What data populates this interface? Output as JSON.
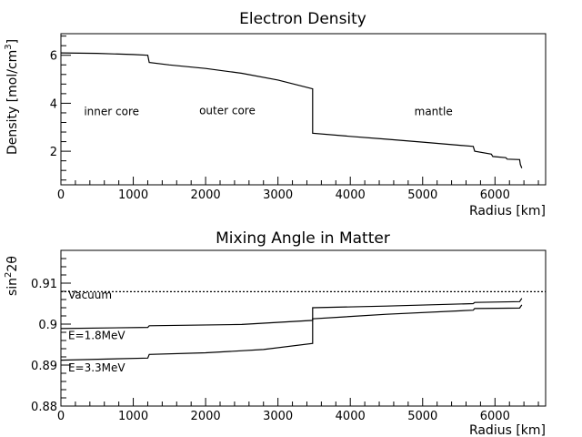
{
  "chart_data": [
    {
      "type": "line",
      "title": "Electron Density",
      "xlabel": "Radius [km]",
      "ylabel_main": "Density [mol/cm",
      "ylabel_sup": "3",
      "ylabel_close": "]",
      "xlim": [
        0,
        6700
      ],
      "ylim": [
        0.6,
        6.9
      ],
      "xticks": [
        0,
        1000,
        2000,
        3000,
        4000,
        5000,
        6000
      ],
      "yticks": [
        2,
        4,
        6
      ],
      "series": [
        {
          "x": [
            0,
            500,
            1000,
            1200,
            1220,
            1500,
            2000,
            2500,
            3000,
            3480,
            3480,
            4000,
            4500,
            5000,
            5500,
            5700,
            5720,
            5950,
            5970,
            6150,
            6170,
            6340,
            6350,
            6371
          ],
          "y": [
            6.1,
            6.08,
            6.03,
            6.0,
            5.7,
            5.6,
            5.45,
            5.25,
            4.97,
            4.6,
            2.75,
            2.62,
            2.5,
            2.38,
            2.25,
            2.2,
            2.0,
            1.88,
            1.78,
            1.73,
            1.67,
            1.65,
            1.45,
            1.3
          ]
        }
      ],
      "annotations": [
        {
          "text": "inner core",
          "x": 700,
          "y": 3.5
        },
        {
          "text": "outer core",
          "x": 2300,
          "y": 3.55
        },
        {
          "text": "mantle",
          "x": 5150,
          "y": 3.5
        }
      ]
    },
    {
      "type": "line",
      "title": "Mixing Angle in Matter",
      "xlabel": "Radius [km]",
      "ylabel_main": "sin",
      "ylabel_sup": "2",
      "ylabel_close": "2θ",
      "xlim": [
        0,
        6700
      ],
      "ylim": [
        0.88,
        0.918
      ],
      "xticks": [
        0,
        1000,
        2000,
        3000,
        4000,
        5000,
        6000
      ],
      "yticks": [
        0.88,
        0.89,
        0.9,
        0.91
      ],
      "ytick_labels": [
        "0.88",
        "0.89",
        "0.9",
        "0.91"
      ],
      "series": [
        {
          "name": "Vacuum",
          "style": "dotted",
          "x": [
            0,
            6700
          ],
          "y": [
            0.9079,
            0.9079
          ]
        },
        {
          "name": "E=1.8MeV",
          "x": [
            0,
            1200,
            1220,
            2500,
            3480,
            3480,
            4500,
            5700,
            5720,
            6340,
            6371
          ],
          "y": [
            0.8989,
            0.8992,
            0.8996,
            0.8999,
            0.9009,
            0.904,
            0.9044,
            0.905,
            0.9053,
            0.9055,
            0.9063
          ]
        },
        {
          "name": "E=3.3MeV",
          "x": [
            0,
            1200,
            1220,
            2000,
            2800,
            3480,
            3480,
            4500,
            5700,
            5720,
            6340,
            6371
          ],
          "y": [
            0.8912,
            0.8917,
            0.8926,
            0.893,
            0.8938,
            0.8953,
            0.9013,
            0.9024,
            0.9034,
            0.9038,
            0.9039,
            0.9047
          ]
        }
      ],
      "annotations": [
        {
          "text": "Vacuum",
          "x": 100,
          "y": 0.9062
        },
        {
          "text": "E=1.8MeV",
          "x": 100,
          "y": 0.8963
        },
        {
          "text": "E=3.3MeV",
          "x": 100,
          "y": 0.8885
        }
      ]
    }
  ]
}
